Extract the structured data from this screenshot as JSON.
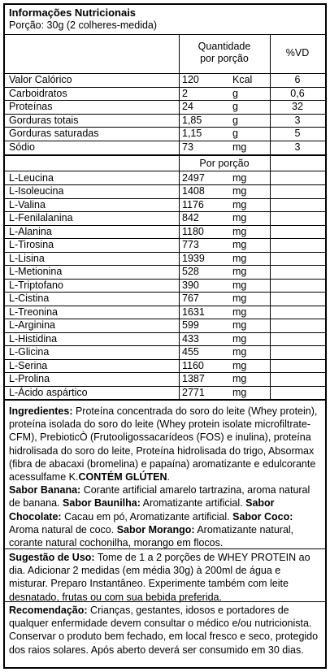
{
  "header": {
    "title": "Informações Nutricionais",
    "portion": "Porção: 30g (2 colheres-medida)"
  },
  "columns": {
    "quantity_line1": "Quantidade",
    "quantity_line2": "por porção",
    "vd": "%VD"
  },
  "nutrients": [
    {
      "name": "Valor Calórico",
      "value": "120",
      "unit": "Kcal",
      "vd": "6"
    },
    {
      "name": "Carboidratos",
      "value": "2",
      "unit": "g",
      "vd": "0,6"
    },
    {
      "name": "Proteínas",
      "value": "24",
      "unit": "g",
      "vd": "32"
    },
    {
      "name": "Gorduras totais",
      "value": "1,85",
      "unit": "g",
      "vd": "3"
    },
    {
      "name": "Gorduras saturadas",
      "value": "1,15",
      "unit": "g",
      "vd": "5"
    },
    {
      "name": "Sódio",
      "value": "73",
      "unit": "mg",
      "vd": "3"
    }
  ],
  "amino_header": "Por porção",
  "amino_acids": [
    {
      "name": "L-Leucina",
      "value": "2497",
      "unit": "mg"
    },
    {
      "name": "L-Isoleucina",
      "value": "1408",
      "unit": "mg"
    },
    {
      "name": "L-Valina",
      "value": "1176",
      "unit": "mg"
    },
    {
      "name": "L-Fenilalanina",
      "value": "842",
      "unit": "mg"
    },
    {
      "name": "L-Alanina",
      "value": "1180",
      "unit": "mg"
    },
    {
      "name": "L-Tirosina",
      "value": "773",
      "unit": "mg"
    },
    {
      "name": "L-Lisina",
      "value": "1939",
      "unit": "mg"
    },
    {
      "name": "L-Metionina",
      "value": "528",
      "unit": "mg"
    },
    {
      "name": "L-Triptofano",
      "value": "390",
      "unit": "mg"
    },
    {
      "name": "L-Cistina",
      "value": "767",
      "unit": "mg"
    },
    {
      "name": "L-Treonina",
      "value": "1631",
      "unit": "mg"
    },
    {
      "name": "L-Arginina",
      "value": "599",
      "unit": "mg"
    },
    {
      "name": "L-Histidina",
      "value": "433",
      "unit": "mg"
    },
    {
      "name": "L-Glicina",
      "value": "455",
      "unit": "mg"
    },
    {
      "name": "L-Serina",
      "value": "1160",
      "unit": "mg"
    },
    {
      "name": "L-Prolina",
      "value": "1387",
      "unit": "mg"
    },
    {
      "name": "L-Ácido aspártico",
      "value": "2771",
      "unit": "mg"
    }
  ],
  "ingredients": {
    "label": "Ingredientes:",
    "text": " Proteína concentrada do soro do leite (Whey protein), proteína isolada do soro do leite (Whey protein isolate microfiltrate-CFM), PrebioticÒ (Frutooligossacarídeos (FOS) e inulina), proteína hidrolisada do soro do leite, Proteína hidrolisada do trigo, Absormax (fibra de abacaxi (bromelina) e papaína) aromatizante e edulcorante acessulfame K.",
    "gluten": "CONTÉM GLÚTEN",
    "gluten_end": ".",
    "flavors": [
      {
        "label": "Sabor Banana:",
        "text": " Corante artificial amarelo tartrazina, aroma natural de banana. "
      },
      {
        "label": "Sabor Baunilha:",
        "text": " Aromatizante artificial. "
      },
      {
        "label": "Sabor Chocolate:",
        "text": " Cacau em pó, Aromatizante artificial. "
      },
      {
        "label": "Sabor Coco:",
        "text": " Aroma natural de coco. "
      },
      {
        "label": "Sabor Morango:",
        "text": " Aromatizante natural, corante natural cochonilha, morango em flocos."
      }
    ]
  },
  "usage": {
    "label": "Sugestão de Uso:",
    "text": " Tome de 1 a 2 porções de WHEY PROTEIN ao dia. Adicionar 2 medidas (em média 30g) à 200ml de água e misturar. Preparo Instantâneo. Experimente também com leite desnatado, frutas ou com sua bebida preferida."
  },
  "recommendation": {
    "label": "Recomendação:",
    "text": " Crianças, gestantes, idosos e portadores de qualquer enfermidade devem consultar o médico e/ou nutricionista. Conservar o produto bem fechado, em local fresco e seco, protegido dos raios solares. Após aberto deverá ser consumido em 30 dias."
  }
}
